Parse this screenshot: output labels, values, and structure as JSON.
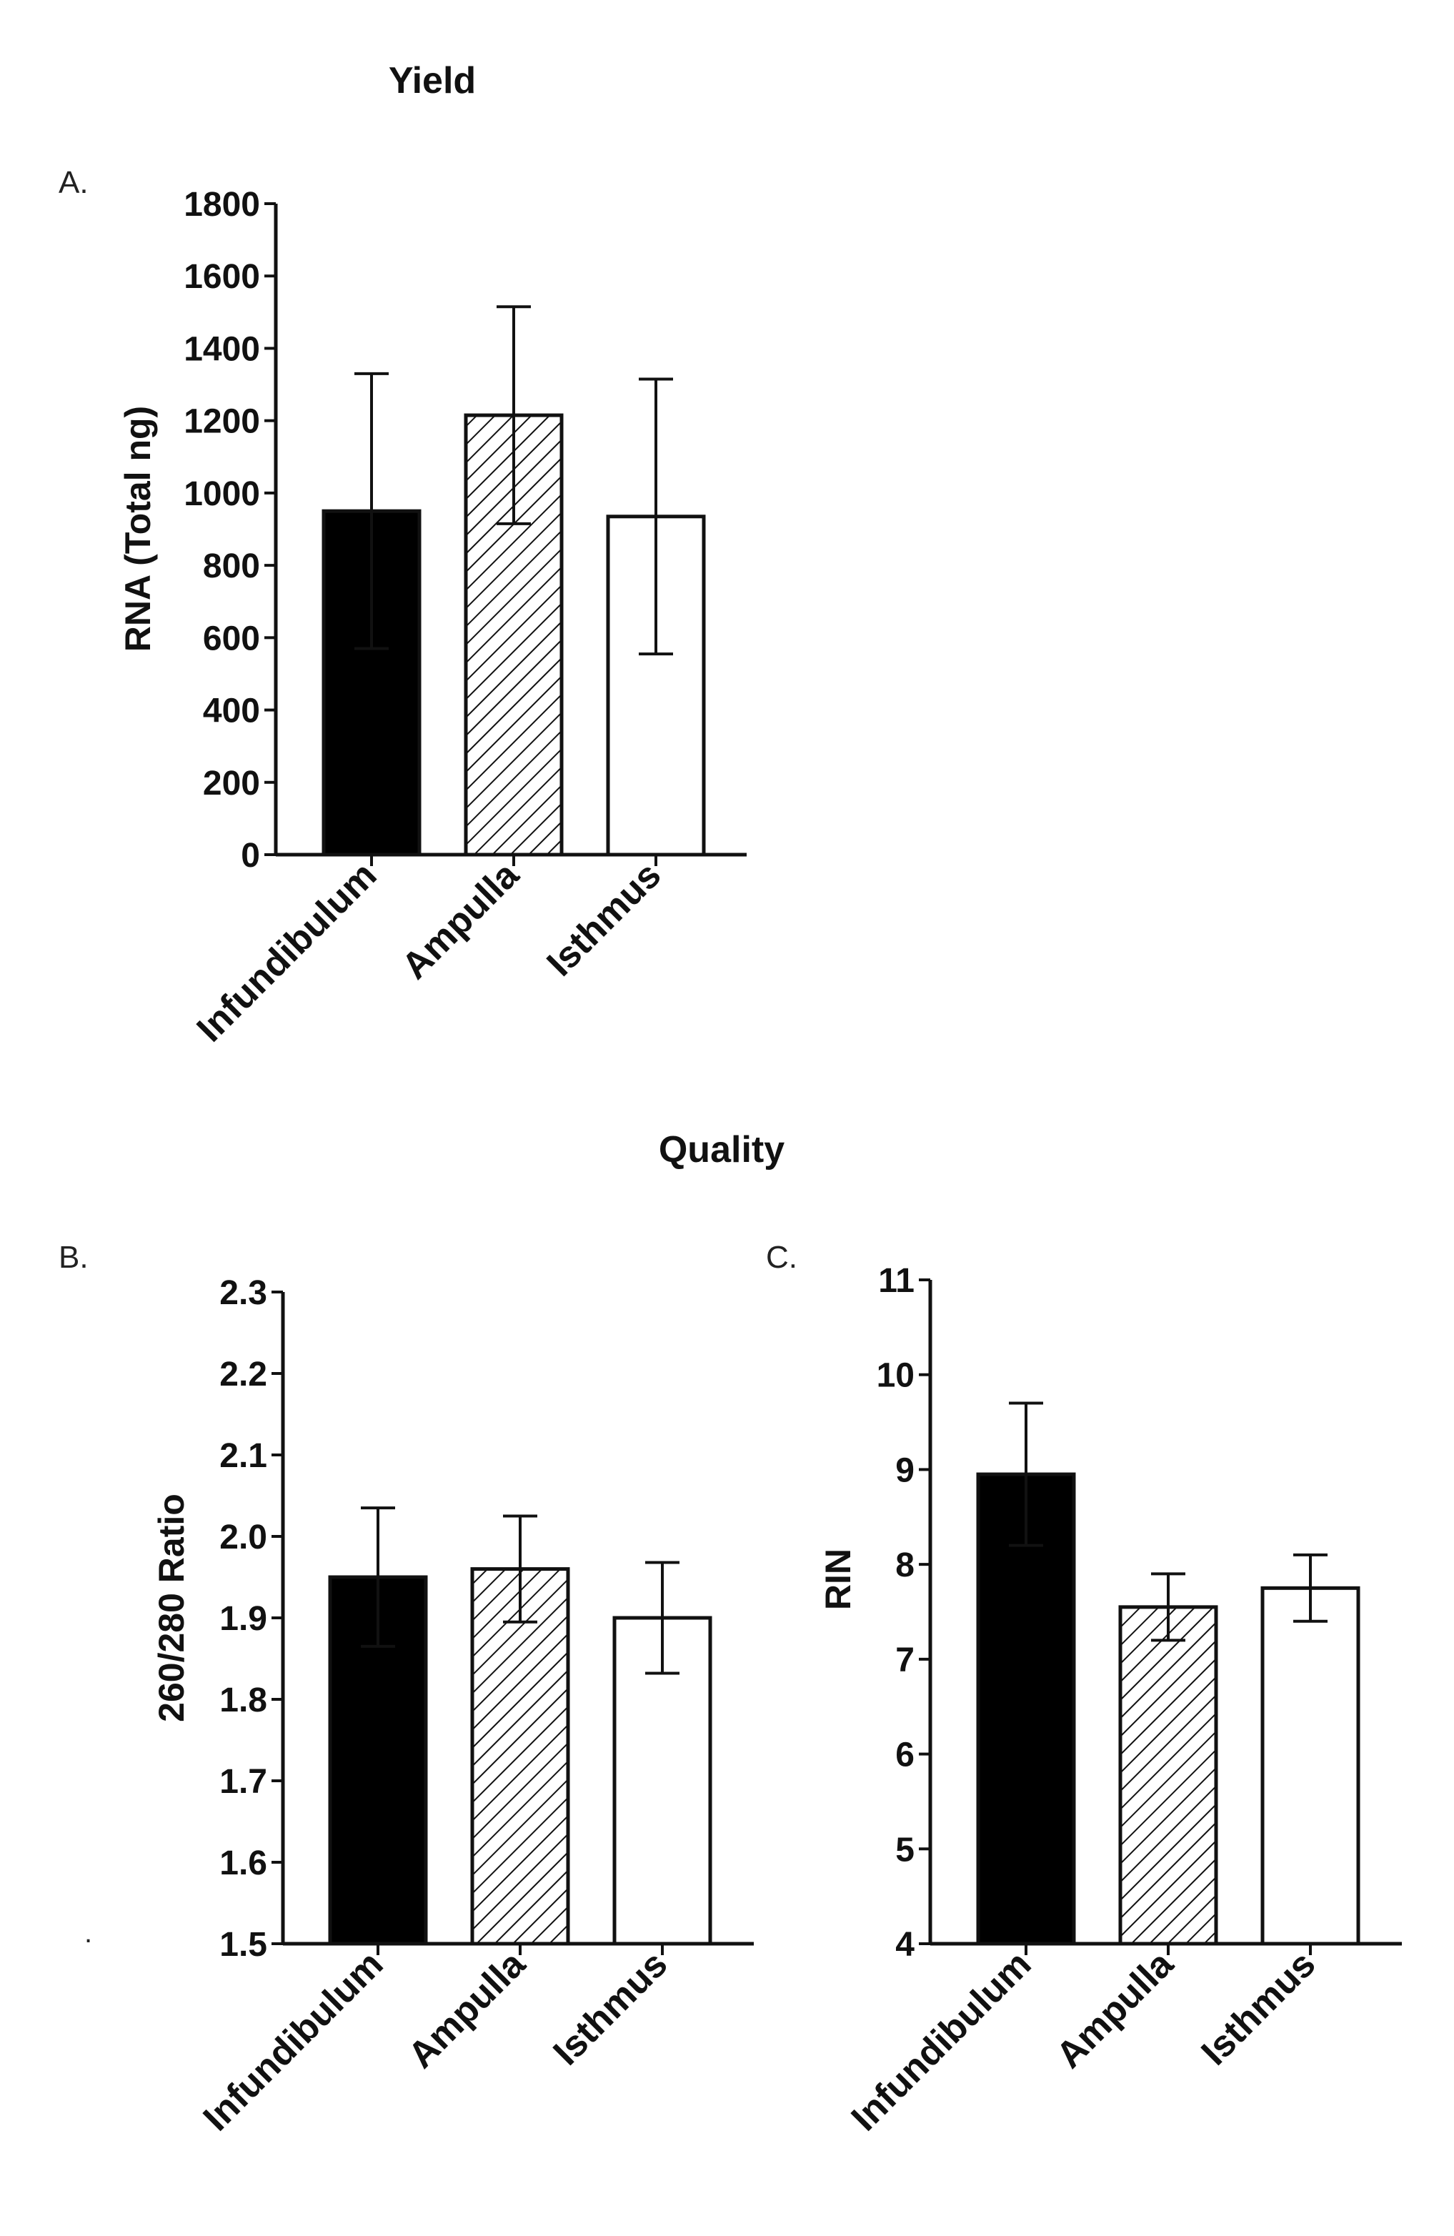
{
  "figure": {
    "section_titles": {
      "yield": "Yield",
      "quality": "Quality"
    },
    "stray_mark": "."
  },
  "chart_data": [
    {
      "panel": "A.",
      "type": "bar",
      "title": "",
      "xlabel": "",
      "ylabel": "RNA (Total ng)",
      "categories": [
        "Infundibulum",
        "Ampulla",
        "Isthmus"
      ],
      "values": [
        950,
        1215,
        935
      ],
      "errors": [
        380,
        300,
        380
      ],
      "fills": [
        "solid",
        "hatched",
        "white"
      ],
      "ylim": [
        0,
        1800
      ],
      "yticks": [
        0,
        200,
        400,
        600,
        800,
        1000,
        1200,
        1400,
        1600,
        1800
      ],
      "ytick_labels": [
        "0",
        "200",
        "400",
        "600",
        "800",
        "1000",
        "1200",
        "1400",
        "1600",
        "1800"
      ],
      "grid": false,
      "legend": "none"
    },
    {
      "panel": "B.",
      "type": "bar",
      "title": "",
      "xlabel": "",
      "ylabel": "260/280 Ratio",
      "categories": [
        "Infundibulum",
        "Ampulla",
        "Isthmus"
      ],
      "values": [
        1.95,
        1.96,
        1.9
      ],
      "errors": [
        0.085,
        0.065,
        0.068
      ],
      "fills": [
        "solid",
        "hatched",
        "white"
      ],
      "ylim": [
        1.5,
        2.3
      ],
      "yticks": [
        1.5,
        1.6,
        1.7,
        1.8,
        1.9,
        2.0,
        2.1,
        2.2,
        2.3
      ],
      "ytick_labels": [
        "1.5",
        "1.6",
        "1.7",
        "1.8",
        "1.9",
        "2.0",
        "2.1",
        "2.2",
        "2.3"
      ],
      "grid": false,
      "legend": "none"
    },
    {
      "panel": "C.",
      "type": "bar",
      "title": "",
      "xlabel": "",
      "ylabel": "RIN",
      "categories": [
        "Infundibulum",
        "Ampulla",
        "Isthmus"
      ],
      "values": [
        8.95,
        7.55,
        7.75
      ],
      "errors": [
        0.75,
        0.35,
        0.35
      ],
      "fills": [
        "solid",
        "hatched",
        "white"
      ],
      "ylim": [
        4,
        11
      ],
      "yticks": [
        4,
        5,
        6,
        7,
        8,
        9,
        10,
        11
      ],
      "ytick_labels": [
        "4",
        "5",
        "6",
        "7",
        "8",
        "9",
        "10",
        "11"
      ],
      "grid": false,
      "legend": "none"
    }
  ],
  "colors": {
    "solid": "#000000",
    "hatched_line": "#111111",
    "white": "#ffffff",
    "axis": "#111111"
  }
}
